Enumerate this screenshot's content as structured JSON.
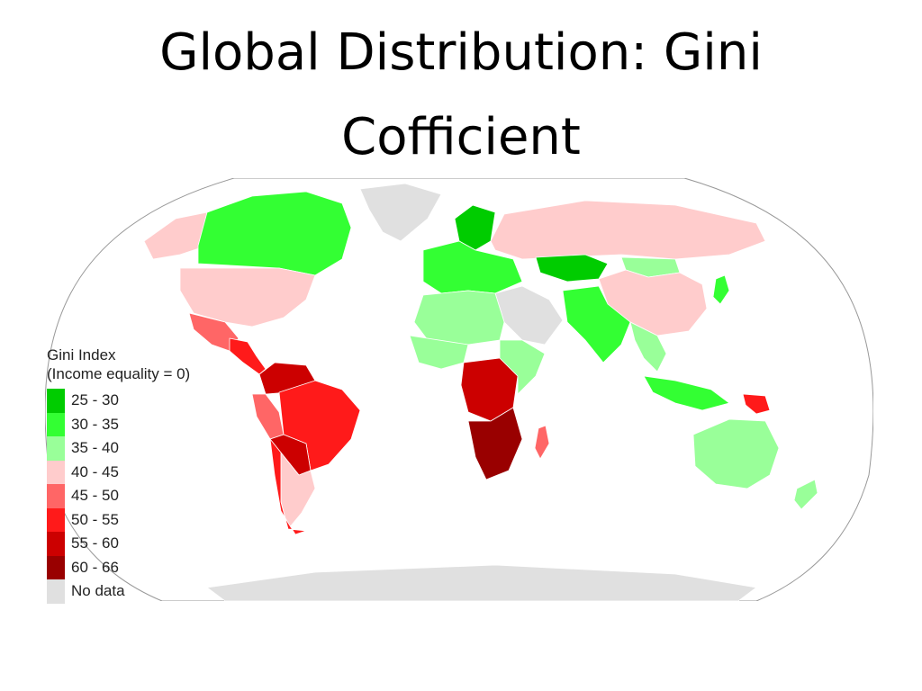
{
  "title": {
    "line1": "Global Distribution: Gini",
    "line2": "Cofficient"
  },
  "legend": {
    "title": "Gini Index",
    "subtitle": "(Income equality = 0)",
    "items": [
      {
        "label": "25 - 30",
        "color": "#00cc00"
      },
      {
        "label": "30 - 35",
        "color": "#33ff33"
      },
      {
        "label": "35 - 40",
        "color": "#99ff99"
      },
      {
        "label": "40 - 45",
        "color": "#ffcccc"
      },
      {
        "label": "45 - 50",
        "color": "#ff6666"
      },
      {
        "label": "50 - 55",
        "color": "#ff1a1a"
      },
      {
        "label": "55 - 60",
        "color": "#cc0000"
      },
      {
        "label": "60 - 66",
        "color": "#990000"
      },
      {
        "label": "No data",
        "color": "#e0e0e0"
      }
    ]
  },
  "regions": {
    "greenland": "No data",
    "canada": "30 - 35",
    "alaska": "40 - 45",
    "usa": "40 - 45",
    "mexico": "45 - 50",
    "central_america": "50 - 55",
    "colombia_venezuela": "55 - 60",
    "brazil": "50 - 55",
    "bolivia": "55 - 60",
    "peru": "45 - 50",
    "argentina": "40 - 45",
    "chile": "50 - 55",
    "scandinavia": "25 - 30",
    "europe": "30 - 35",
    "russia": "40 - 45",
    "kazakhstan": "25 - 30",
    "mongolia": "35 - 40",
    "china": "40 - 45",
    "japan": "30 - 35",
    "middle_east": "No data",
    "south_asia": "30 - 35",
    "southeast_asia": "35 - 40",
    "indonesia": "30 - 35",
    "papua": "50 - 55",
    "north_africa": "35 - 40",
    "west_africa": "35 - 40",
    "central_africa": "55 - 60",
    "east_africa": "35 - 40",
    "southern_africa": "60 - 66",
    "madagascar": "45 - 50",
    "australia": "35 - 40",
    "new_zealand": "35 - 40",
    "antarctica": "No data"
  },
  "colors": {
    "ocean": "#ffffff",
    "map_outline": "#999999",
    "borders": "#ffffff"
  }
}
